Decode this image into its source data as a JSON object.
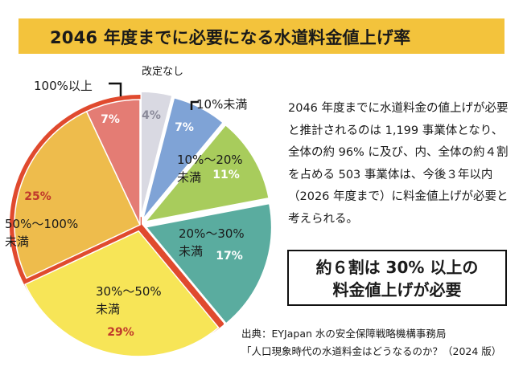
{
  "header": {
    "title": "2046 年度までに必要になる水道料金値上げ率"
  },
  "chart_data": {
    "type": "pie",
    "title": "2046 年度までに必要になる水道料金値上げ率",
    "slices": [
      {
        "label": "改定なし",
        "value": 4,
        "value_label": "4%",
        "color": "#d9d9e2"
      },
      {
        "label": "10%未満",
        "value": 7,
        "value_label": "7%",
        "color": "#7fa3d6"
      },
      {
        "label": "10%〜20%未満",
        "value": 11,
        "value_label": "11%",
        "color": "#a8cc5c"
      },
      {
        "label": "20%〜30%未満",
        "value": 17,
        "value_label": "17%",
        "color": "#5aac9f"
      },
      {
        "label": "30%〜50%未満",
        "value": 29,
        "value_label": "29%",
        "color": "#f7e557"
      },
      {
        "label": "50%〜100%未満",
        "value": 25,
        "value_label": "25%",
        "color": "#eebc4c"
      },
      {
        "label": "100%以上",
        "value": 7,
        "value_label": "7%",
        "color": "#e47c74"
      }
    ],
    "highlight_border_color": "#e04a2e"
  },
  "description": "2046 年度までに水道料金の値上げが必要と推計されるのは 1,199 事業体となり、全体の約 96% に及び、内、全体の約４割を占める 503 事業体は、今後３年以内（2026 年度まで）に料金値上げが必要と考えられる。",
  "highlight": {
    "line1": "約６割は 30% 以上の",
    "line2": "料金値上げが必要"
  },
  "source": {
    "line1": "出典：EYJapan 水の安全保障戦略機構事務局",
    "line2": "「人口現象時代の水道料金はどうなるのか？（2024 版）"
  }
}
